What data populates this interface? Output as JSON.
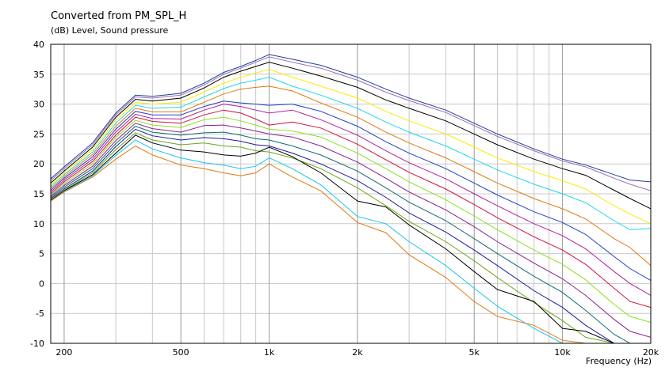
{
  "chart_data": {
    "type": "line",
    "title": "Converted from PM_SPL_H",
    "ylabel": "(dB)  Level, Sound pressure",
    "xlabel": "Frequency  (Hz)",
    "x_scale": "log",
    "xlim": [
      180,
      20000
    ],
    "ylim": [
      -10,
      40
    ],
    "grid": true,
    "legend": "none",
    "x_ticks": [
      {
        "value": 200,
        "label": "200"
      },
      {
        "value": 500,
        "label": "500"
      },
      {
        "value": 1000,
        "label": "1k"
      },
      {
        "value": 2000,
        "label": "2k"
      },
      {
        "value": 5000,
        "label": "5k"
      },
      {
        "value": 10000,
        "label": "10k"
      },
      {
        "value": 20000,
        "label": "20k"
      }
    ],
    "y_ticks": [
      40,
      35,
      30,
      25,
      20,
      15,
      10,
      5,
      0,
      -5,
      -10
    ],
    "x": [
      180,
      200,
      250,
      300,
      350,
      400,
      500,
      600,
      700,
      800,
      900,
      1000,
      1200,
      1500,
      2000,
      2500,
      3000,
      4000,
      5000,
      6000,
      8000,
      10000,
      12000,
      15000,
      17000,
      20000
    ],
    "series": [
      {
        "color": "#1f3f9f",
        "values": [
          17.5,
          19.5,
          23.5,
          28.5,
          31.5,
          31.3,
          31.8,
          33.5,
          35.3,
          36.3,
          37.3,
          38.3,
          37.5,
          36.5,
          34.5,
          32.5,
          31.0,
          29.0,
          26.8,
          25.0,
          22.5,
          20.8,
          19.8,
          18.2,
          17.3,
          17.0
        ]
      },
      {
        "color": "#9a6fb0",
        "values": [
          17.2,
          19.2,
          23.2,
          28.2,
          31.2,
          31.0,
          31.5,
          33.2,
          35.0,
          36.0,
          37.0,
          37.9,
          37.0,
          36.0,
          34.0,
          32.0,
          30.6,
          28.6,
          26.4,
          24.6,
          22.2,
          20.5,
          19.5,
          17.6,
          16.6,
          15.5
        ]
      },
      {
        "color": "#000000",
        "values": [
          16.8,
          18.8,
          22.8,
          27.8,
          30.8,
          30.5,
          31.0,
          32.7,
          34.5,
          35.5,
          36.3,
          37.0,
          36.0,
          34.7,
          32.8,
          30.7,
          29.3,
          27.2,
          25.0,
          23.2,
          20.8,
          19.2,
          18.1,
          15.6,
          14.2,
          12.5
        ]
      },
      {
        "color": "#ffea00",
        "values": [
          16.5,
          18.5,
          22.4,
          27.3,
          30.3,
          30.0,
          30.3,
          32.0,
          33.5,
          34.5,
          35.2,
          35.8,
          34.5,
          33.0,
          31.0,
          28.8,
          27.2,
          25.0,
          22.8,
          21.0,
          18.7,
          17.2,
          15.8,
          13.0,
          11.6,
          10.0
        ]
      },
      {
        "color": "#1fd8e8",
        "values": [
          16.2,
          18.2,
          22.0,
          26.8,
          29.8,
          29.3,
          29.5,
          31.2,
          32.6,
          33.5,
          34.0,
          34.5,
          33.0,
          31.5,
          29.3,
          27.0,
          25.3,
          23.0,
          20.8,
          19.0,
          16.6,
          15.0,
          13.5,
          10.5,
          9.0,
          9.2
        ]
      },
      {
        "color": "#e07a10",
        "values": [
          15.9,
          17.9,
          21.6,
          26.3,
          29.3,
          28.7,
          28.7,
          30.3,
          31.7,
          32.5,
          32.8,
          33.0,
          32.2,
          30.2,
          27.8,
          25.3,
          23.5,
          21.0,
          18.7,
          16.8,
          14.2,
          12.5,
          10.8,
          7.5,
          6.0,
          3.0
        ]
      },
      {
        "color": "#2040c0",
        "values": [
          15.6,
          17.6,
          21.2,
          25.8,
          28.8,
          28.2,
          28.2,
          29.6,
          30.5,
          30.2,
          30.0,
          29.8,
          30.0,
          28.8,
          26.3,
          23.7,
          21.8,
          19.2,
          16.8,
          14.8,
          12.0,
          10.2,
          8.2,
          4.5,
          2.5,
          0.5
        ]
      },
      {
        "color": "#b0209a",
        "values": [
          15.3,
          17.3,
          20.8,
          25.3,
          28.3,
          27.6,
          27.5,
          29.0,
          30.0,
          29.6,
          29.0,
          28.5,
          29.0,
          27.4,
          24.8,
          22.2,
          20.2,
          17.5,
          15.0,
          13.0,
          10.0,
          8.0,
          5.8,
          2.0,
          0.0,
          -2.0
        ]
      },
      {
        "color": "#d01040",
        "values": [
          15.0,
          17.0,
          20.4,
          24.8,
          27.8,
          27.1,
          26.8,
          28.2,
          29.0,
          28.5,
          27.5,
          26.5,
          27.0,
          26.0,
          23.3,
          20.7,
          18.6,
          15.8,
          13.2,
          11.0,
          7.8,
          5.6,
          3.2,
          -0.8,
          -3.0,
          -4.0
        ]
      },
      {
        "color": "#88e020",
        "values": [
          14.8,
          16.7,
          20.0,
          24.4,
          27.3,
          26.5,
          26.1,
          27.4,
          27.8,
          27.2,
          26.5,
          25.8,
          25.5,
          24.5,
          21.8,
          19.2,
          17.0,
          14.0,
          11.3,
          9.0,
          5.6,
          3.2,
          0.6,
          -3.5,
          -5.5,
          -6.5
        ]
      },
      {
        "color": "#8a2090",
        "values": [
          14.6,
          16.4,
          19.6,
          23.9,
          26.8,
          25.9,
          25.3,
          26.4,
          26.5,
          26.0,
          25.5,
          25.0,
          24.5,
          23.0,
          20.3,
          17.6,
          15.3,
          12.3,
          9.5,
          7.0,
          3.4,
          0.8,
          -2.0,
          -6.0,
          -8.0,
          -9.0
        ]
      },
      {
        "color": "#106a70",
        "values": [
          14.4,
          16.1,
          19.2,
          23.4,
          26.3,
          25.3,
          24.8,
          25.2,
          25.3,
          24.8,
          24.2,
          24.0,
          23.0,
          21.5,
          18.8,
          16.0,
          13.6,
          10.5,
          7.5,
          5.0,
          1.2,
          -1.5,
          -4.5,
          -8.5,
          -10,
          -10
        ]
      },
      {
        "color": "#1a1a9a",
        "values": [
          14.2,
          15.8,
          18.8,
          22.9,
          25.8,
          24.7,
          24.0,
          24.4,
          24.2,
          23.8,
          23.2,
          23.0,
          21.8,
          20.0,
          17.2,
          14.4,
          11.8,
          8.6,
          5.6,
          3.0,
          -1.2,
          -4.0,
          -7.0,
          -10,
          -10,
          -10
        ]
      },
      {
        "color": "#6aa81a",
        "values": [
          14.0,
          15.6,
          18.5,
          22.4,
          25.2,
          24.0,
          23.2,
          23.5,
          23.0,
          22.8,
          22.2,
          22.0,
          21.0,
          19.2,
          16.0,
          13.0,
          10.4,
          7.0,
          3.8,
          1.0,
          -3.2,
          -6.2,
          -9.0,
          -10,
          -10,
          -10
        ]
      },
      {
        "color": "#000000",
        "values": [
          13.9,
          15.5,
          18.2,
          21.8,
          24.8,
          23.5,
          22.3,
          22.0,
          21.5,
          21.3,
          21.8,
          22.8,
          21.2,
          18.5,
          13.8,
          12.8,
          9.8,
          5.8,
          2.0,
          -1.0,
          -3.0,
          -7.5,
          -8.0,
          -10,
          -10,
          -10
        ]
      },
      {
        "color": "#18c8e8",
        "values": [
          13.8,
          15.4,
          18.0,
          21.4,
          24.0,
          22.5,
          21.0,
          20.2,
          19.8,
          19.2,
          19.6,
          21.0,
          19.2,
          16.5,
          11.2,
          10.0,
          7.0,
          3.0,
          -0.8,
          -3.8,
          -7.5,
          -10,
          -10,
          -10,
          -10,
          -10
        ]
      },
      {
        "color": "#e07a10",
        "values": [
          13.8,
          15.3,
          17.8,
          20.8,
          23.0,
          21.5,
          19.8,
          19.2,
          18.5,
          18.0,
          18.5,
          20.0,
          17.8,
          15.5,
          10.2,
          8.5,
          4.8,
          1.0,
          -3.0,
          -5.5,
          -7.0,
          -9.5,
          -10,
          -10,
          -10,
          -10
        ]
      }
    ]
  }
}
